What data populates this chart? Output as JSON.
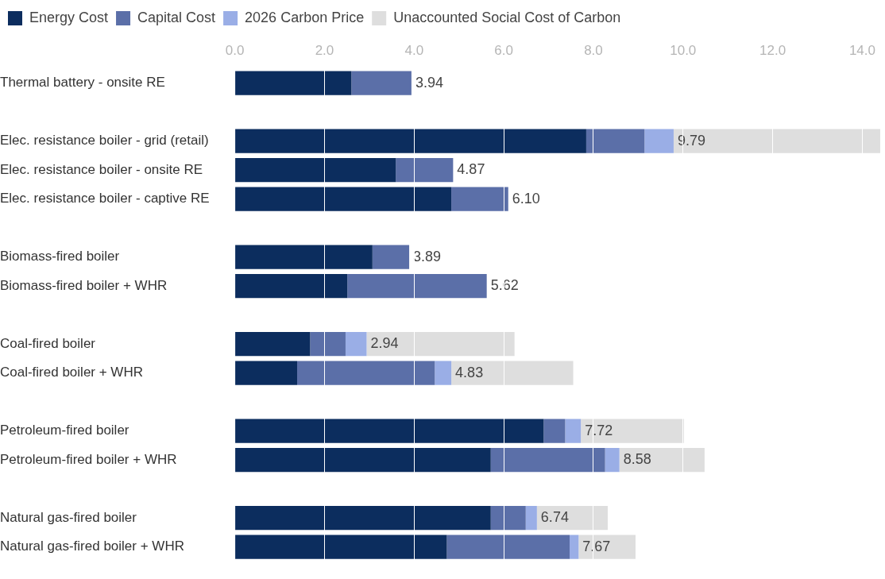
{
  "chart_data": {
    "type": "bar",
    "orientation": "horizontal",
    "stacked": true,
    "categories": [
      "Thermal battery - onsite RE",
      null,
      "Elec. resistance boiler - grid (retail)",
      "Elec. resistance boiler - onsite RE",
      "Elec. resistance boiler - captive RE",
      null,
      "Biomass-fired boiler",
      "Biomass-fired boiler + WHR",
      null,
      "Coal-fired boiler",
      "Coal-fired boiler + WHR",
      null,
      "Petroleum-fired boiler",
      "Petroleum-fired boiler + WHR",
      null,
      "Natural gas-fired boiler",
      "Natural gas-fired boiler + WHR"
    ],
    "series": [
      {
        "name": "Energy Cost",
        "color": "#0c2d5e",
        "values": [
          2.6,
          null,
          7.84,
          3.59,
          4.83,
          null,
          3.07,
          2.51,
          null,
          1.68,
          1.39,
          null,
          6.89,
          5.71,
          null,
          5.71,
          4.73
        ]
      },
      {
        "name": "Capital Cost",
        "color": "#5b6fa8",
        "values": [
          1.34,
          null,
          1.3,
          1.28,
          1.27,
          null,
          0.82,
          3.11,
          null,
          0.79,
          3.07,
          null,
          0.48,
          2.55,
          null,
          0.78,
          2.74
        ]
      },
      {
        "name": "2026 Carbon Price",
        "color": "#9aaee6",
        "values": [
          0,
          null,
          0.65,
          0,
          0,
          null,
          0,
          0,
          null,
          0.47,
          0.37,
          null,
          0.35,
          0.32,
          null,
          0.25,
          0.2
        ]
      },
      {
        "name": "Unaccounted Social Cost of Carbon",
        "color": "#dedede",
        "values": [
          0,
          null,
          4.61,
          0,
          0,
          null,
          0,
          0,
          null,
          3.3,
          2.72,
          null,
          2.3,
          1.9,
          null,
          1.58,
          1.27
        ]
      }
    ],
    "xlim": [
      0,
      14.4
    ],
    "xticks": [
      {
        "value": 0,
        "label": "0.0"
      },
      {
        "value": 2,
        "label": "2.0"
      },
      {
        "value": 4,
        "label": "4.0"
      },
      {
        "value": 6,
        "label": "6.0"
      },
      {
        "value": 8,
        "label": "8.0"
      },
      {
        "value": 10,
        "label": "10.0"
      },
      {
        "value": 12,
        "label": "12.0"
      },
      {
        "value": 14,
        "label": "14.0"
      }
    ],
    "grid": "x",
    "legend": "top left",
    "annotations": [
      {
        "text": "3.94",
        "x": 3.94,
        "y": "Thermal battery - onsite RE"
      },
      {
        "text": "9.79",
        "x": 9.79,
        "y": "Elec. resistance boiler - grid (retail)"
      },
      {
        "text": "4.87",
        "x": 4.87,
        "y": "Elec. resistance boiler - onsite RE"
      },
      {
        "text": "6.10",
        "x": 6.1,
        "y": "Elec. resistance boiler - captive RE"
      },
      {
        "text": "3.89",
        "x": 3.89,
        "y": "Biomass-fired boiler"
      },
      {
        "text": "5.62",
        "x": 5.62,
        "y": "Biomass-fired boiler + WHR"
      },
      {
        "text": "2.94",
        "x": 2.94,
        "y": "Coal-fired boiler"
      },
      {
        "text": "4.83",
        "x": 4.83,
        "y": "Coal-fired boiler + WHR"
      },
      {
        "text": "7.72",
        "x": 7.72,
        "y": "Petroleum-fired boiler"
      },
      {
        "text": "8.58",
        "x": 8.58,
        "y": "Petroleum-fired boiler + WHR"
      },
      {
        "text": "6.74",
        "x": 6.74,
        "y": "Natural gas-fired boiler"
      },
      {
        "text": "7.67",
        "x": 7.67,
        "y": "Natural gas-fired boiler + WHR"
      }
    ]
  }
}
